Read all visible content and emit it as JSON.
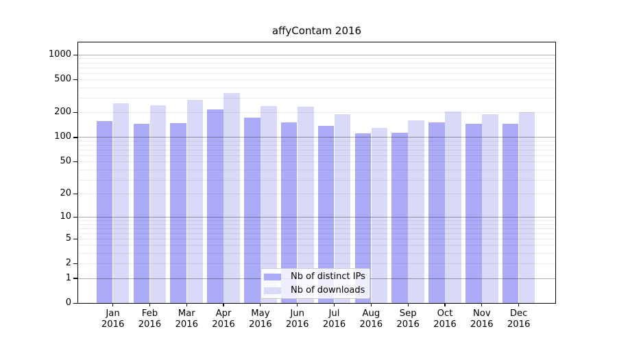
{
  "title": "affyContam 2016",
  "colors": {
    "ips_bar": "#aaaaf6",
    "downloads_bar": "#d9d9f8",
    "grid_major": "rgba(0,0,0,0.33)",
    "grid_minor": "rgba(0,0,0,0.08)",
    "frame": "#000000",
    "background": "#ffffff"
  },
  "chart_data": {
    "type": "bar",
    "title": "affyContam 2016",
    "categories": [
      "Jan 2016",
      "Feb 2016",
      "Mar 2016",
      "Apr 2016",
      "May 2016",
      "Jun 2016",
      "Jul 2016",
      "Aug 2016",
      "Sep 2016",
      "Oct 2016",
      "Nov 2016",
      "Dec 2016"
    ],
    "year": "2016",
    "series": [
      {
        "name": "Nb of distinct IPs",
        "color": "#aaaaf6",
        "values": [
          157,
          146,
          150,
          220,
          174,
          152,
          139,
          112,
          114,
          151,
          147,
          148
        ]
      },
      {
        "name": "Nb of downloads",
        "color": "#d9d9f8",
        "values": [
          262,
          248,
          289,
          350,
          242,
          238,
          192,
          130,
          162,
          208,
          190,
          205
        ]
      }
    ],
    "xlabel": "",
    "ylabel": "",
    "y_scale": "log1p",
    "y_ticks": [
      0,
      1,
      2,
      5,
      10,
      20,
      50,
      100,
      200,
      500,
      1000
    ],
    "ylim": [
      0,
      1450
    ],
    "grid": true,
    "legend_position": "bottom-center"
  }
}
